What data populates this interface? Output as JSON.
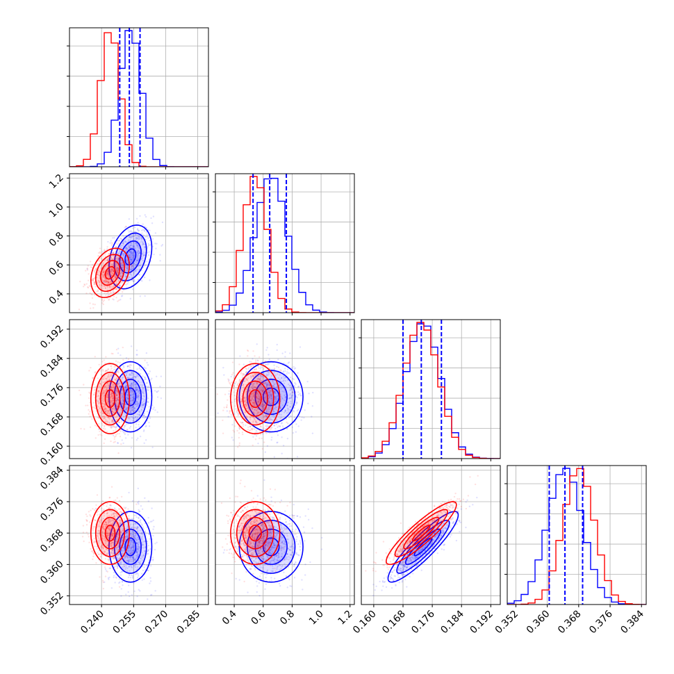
{
  "chart_data": {
    "type": "corner",
    "grid": true,
    "colors": {
      "series_a": "#0000ff",
      "series_b": "#ff0000",
      "quantile_line": "#0000ff"
    },
    "parameters": [
      {
        "range": [
          0.225,
          0.29
        ],
        "ticks": [
          "0.240",
          "0.255",
          "0.270",
          "0.285"
        ],
        "tick_values": [
          0.24,
          0.255,
          0.27,
          0.285
        ]
      },
      {
        "range": [
          0.27,
          1.23
        ],
        "ticks": [
          "0.4",
          "0.6",
          "0.8",
          "1.0",
          "1.2"
        ],
        "tick_values": [
          0.4,
          0.6,
          0.8,
          1.0,
          1.2
        ]
      },
      {
        "range": [
          0.1566,
          0.1946
        ],
        "ticks": [
          "0.160",
          "0.168",
          "0.176",
          "0.184",
          "0.192"
        ],
        "tick_values": [
          0.16,
          0.168,
          0.176,
          0.184,
          0.192
        ]
      },
      {
        "range": [
          0.3498,
          0.3852
        ],
        "ticks": [
          "0.352",
          "0.360",
          "0.368",
          "0.376",
          "0.384"
        ],
        "tick_values": [
          0.352,
          0.36,
          0.368,
          0.376,
          0.384
        ]
      }
    ],
    "series": [
      {
        "color": "#0000ff",
        "mean": [
          0.2535,
          0.655,
          0.1735,
          0.3645
        ],
        "sd": [
          0.005,
          0.11,
          0.0048,
          0.0045
        ],
        "rho": {
          "0-1": 0.3,
          "2-3": 0.9,
          "1-2": 0.0,
          "0-2": 0.0,
          "0-3": 0.0,
          "1-3": 0.0
        }
      },
      {
        "color": "#ff0000",
        "mean": [
          0.244,
          0.545,
          0.173,
          0.368
        ],
        "sd": [
          0.0045,
          0.085,
          0.0048,
          0.004
        ],
        "rho": {
          "0-1": 0.3,
          "2-3": 0.9,
          "1-2": 0.0,
          "0-2": 0.0,
          "0-3": 0.0,
          "1-3": 0.0
        }
      }
    ],
    "quantile_lines": [
      [
        0.2485,
        0.253,
        0.258
      ],
      [
        0.53,
        0.645,
        0.76
      ],
      [
        0.168,
        0.173,
        0.1785
      ],
      [
        0.3605,
        0.3645,
        0.369
      ]
    ]
  }
}
